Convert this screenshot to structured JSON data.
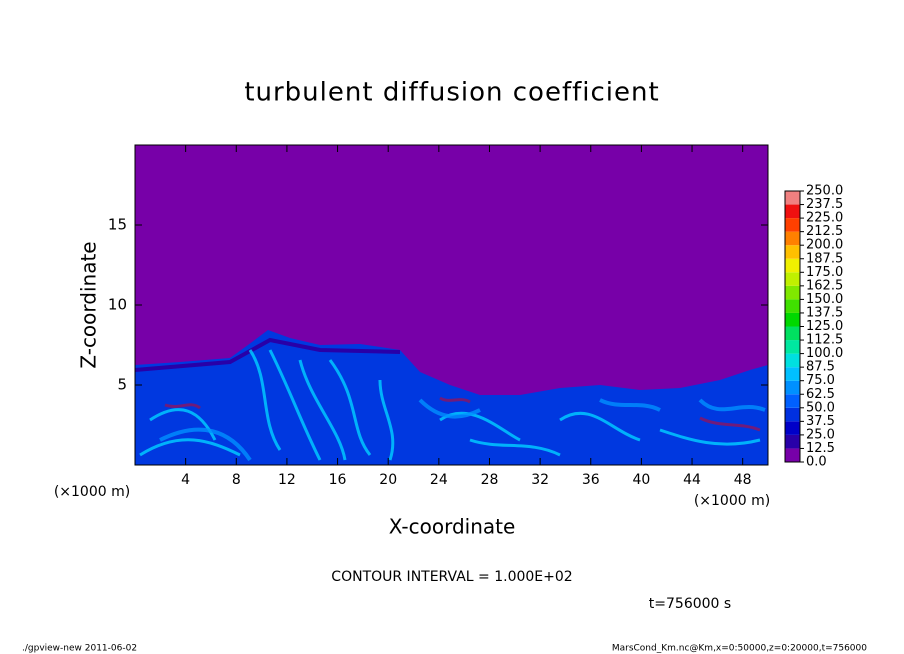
{
  "chart_data": {
    "type": "contour",
    "title": "turbulent diffusion coefficient",
    "xlabel": "X-coordinate",
    "ylabel": "Z-coordinate",
    "x_unit": "(×1000 m)",
    "x_unit_right": "(×1000 m)",
    "xlim": [
      0,
      50
    ],
    "ylim": [
      0,
      20
    ],
    "xticks": [
      4,
      8,
      12,
      16,
      20,
      24,
      28,
      32,
      36,
      40,
      44,
      48
    ],
    "yticks": [
      5,
      10,
      15
    ],
    "levels": [
      {
        "value": 0,
        "label": "0.0"
      },
      {
        "value": 12.5,
        "label": "12.5"
      },
      {
        "value": 25,
        "label": "25.0"
      },
      {
        "value": 37.5,
        "label": "37.5"
      },
      {
        "value": 50,
        "label": "50.0"
      },
      {
        "value": 62.5,
        "label": "62.5"
      },
      {
        "value": 75,
        "label": "75.0"
      },
      {
        "value": 87.5,
        "label": "87.5"
      },
      {
        "value": 100,
        "label": "100.0"
      },
      {
        "value": 112.5,
        "label": "112.5"
      },
      {
        "value": 125,
        "label": "125.0"
      },
      {
        "value": 137.5,
        "label": "137.5"
      },
      {
        "value": 150,
        "label": "150.0"
      },
      {
        "value": 162.5,
        "label": "162.5"
      },
      {
        "value": 175,
        "label": "175.0"
      },
      {
        "value": 187.5,
        "label": "187.5"
      },
      {
        "value": 200,
        "label": "200.0"
      },
      {
        "value": 212.5,
        "label": "212.5"
      },
      {
        "value": 225,
        "label": "225.0"
      },
      {
        "value": 237.5,
        "label": "237.5"
      },
      {
        "value": 250,
        "label": "250.0"
      }
    ],
    "colors": [
      "#7700a8",
      "#2800a8",
      "#0000c8",
      "#0030e0",
      "#0060ff",
      "#0090ff",
      "#00c0ff",
      "#00e0e0",
      "#00e8a0",
      "#00e060",
      "#00d800",
      "#40e000",
      "#80e800",
      "#c0f000",
      "#f0f000",
      "#ffc000",
      "#ff8000",
      "#ff4000",
      "#f01010",
      "#f08080"
    ],
    "contour_interval": "CONTOUR INTERVAL = 1.000E+02",
    "time_label": "t=756000 s",
    "footer_left": "./gpview-new   2011-06-02",
    "footer_right": "MarsCond_Km.nc@Km,x=0:50000,z=0:20000,t=756000"
  }
}
